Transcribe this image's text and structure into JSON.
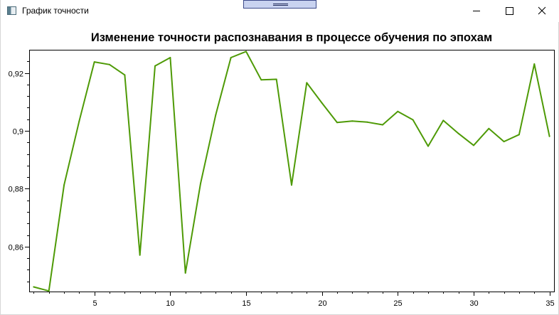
{
  "window": {
    "title": "График точности",
    "icon": "app-window-icon",
    "controls": [
      "minimize-icon",
      "maximize-icon",
      "close-icon"
    ]
  },
  "colors": {
    "series": "#4e9a06",
    "axis": "#000000",
    "title": "#000000"
  },
  "chart_data": {
    "type": "line",
    "title": "Изменение точности распознавания в процессе обучения по эпохам",
    "xlabel": "",
    "ylabel": "",
    "xlim": [
      0.7,
      35.3
    ],
    "ylim": [
      0.8445,
      0.928
    ],
    "grid": false,
    "x_ticks": [
      5,
      10,
      15,
      20,
      25,
      30,
      35
    ],
    "x_tick_labels": [
      "5",
      "10",
      "15",
      "20",
      "25",
      "30",
      "35"
    ],
    "y_ticks": [
      0.86,
      0.88,
      0.9,
      0.92
    ],
    "y_tick_labels": [
      "0,86",
      "0,88",
      "0,9",
      "0,92"
    ],
    "series": [
      {
        "x": [
          1,
          2,
          3,
          4,
          5,
          6,
          7,
          8,
          9,
          10,
          11,
          12,
          13,
          14,
          15,
          16,
          17,
          18,
          19,
          20,
          21,
          22,
          23,
          24,
          25,
          26,
          27,
          28,
          29,
          30,
          31,
          32,
          33,
          34,
          35
        ],
        "values": [
          0.8461,
          0.8447,
          0.8813,
          0.9034,
          0.9238,
          0.9229,
          0.9193,
          0.8571,
          0.9224,
          0.9253,
          0.8509,
          0.8818,
          0.9056,
          0.9253,
          0.9274,
          0.9176,
          0.9178,
          0.8813,
          0.9166,
          0.9096,
          0.9029,
          0.9034,
          0.903,
          0.9021,
          0.9067,
          0.9038,
          0.8947,
          0.9036,
          0.8991,
          0.895,
          0.9008,
          0.8963,
          0.8987,
          0.9231,
          0.8981
        ]
      }
    ]
  }
}
